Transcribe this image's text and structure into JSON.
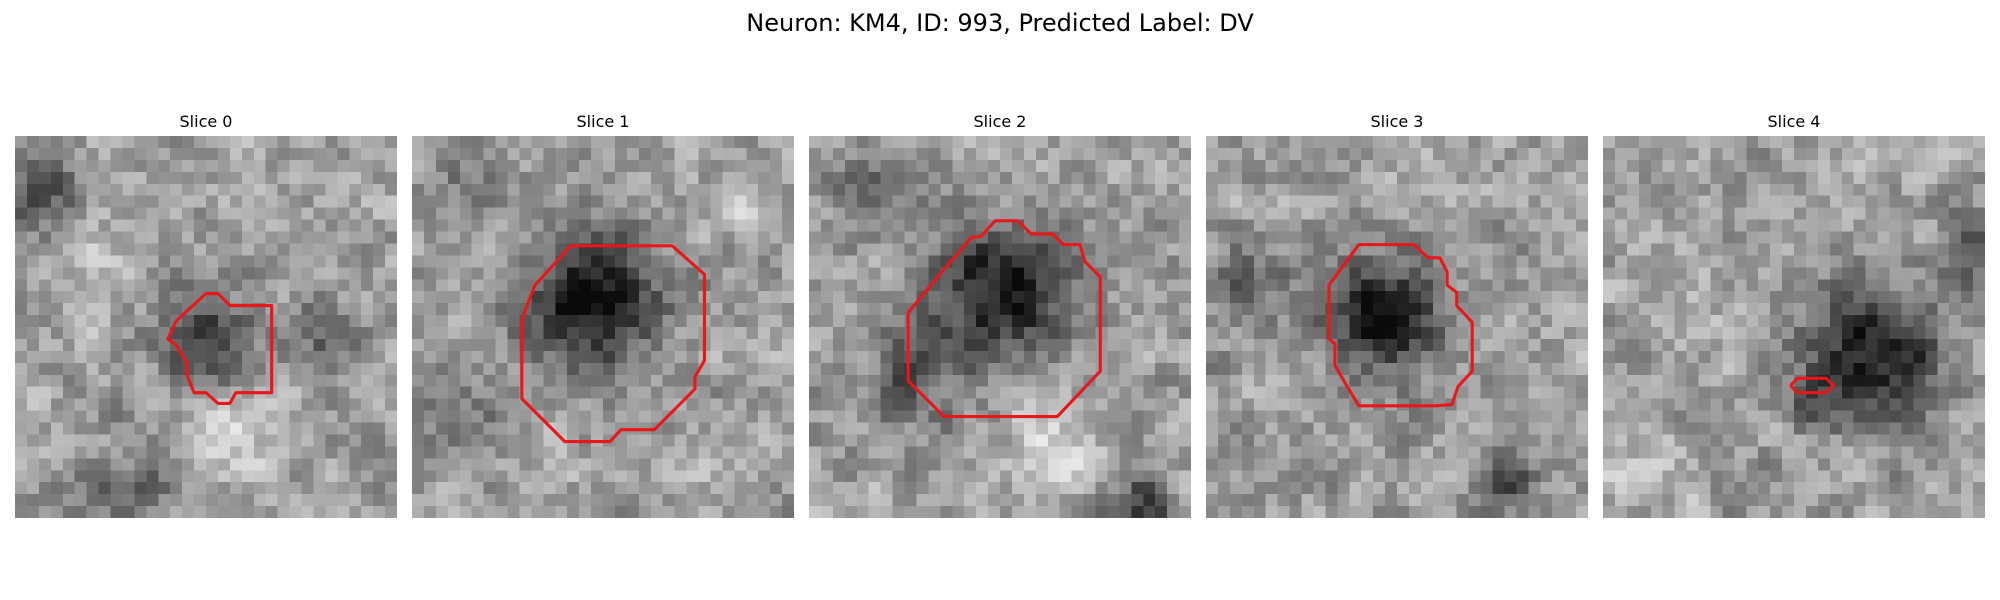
{
  "figure": {
    "title": "Neuron: KM4, ID: 993, Predicted Label: DV",
    "contour_color": "#e8171a"
  },
  "slices": [
    {
      "title": "Slice 0"
    },
    {
      "title": "Slice 1"
    },
    {
      "title": "Slice 2"
    },
    {
      "title": "Slice 3"
    },
    {
      "title": "Slice 4"
    }
  ]
}
